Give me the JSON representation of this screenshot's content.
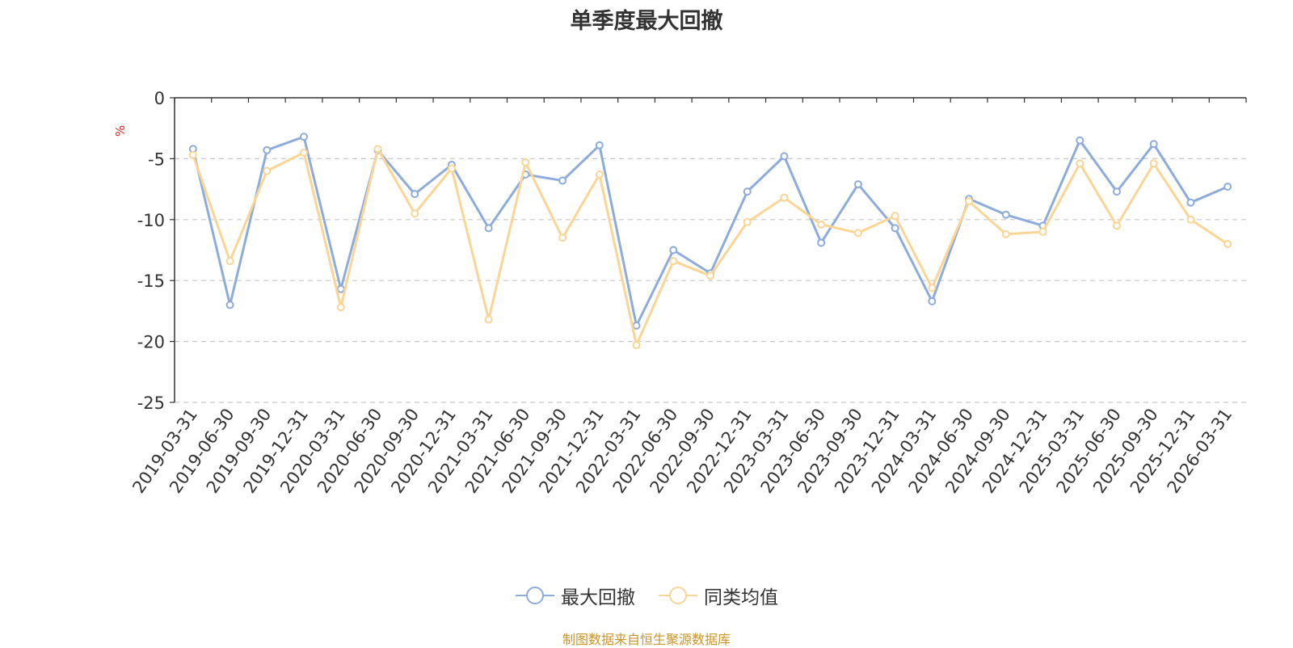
{
  "title": "单季度最大回撤",
  "footer": "制图数据来自恒生聚源数据库",
  "chart_data": {
    "type": "line",
    "ylabel": "%",
    "ylim": [
      -25,
      0
    ],
    "yticks": [
      0,
      -5,
      -10,
      -15,
      -20,
      -25
    ],
    "grid": true,
    "legend_position": "bottom-center",
    "categories": [
      "2019-03-31",
      "2019-06-30",
      "2019-09-30",
      "2019-12-31",
      "2020-03-31",
      "2020-06-30",
      "2020-09-30",
      "2020-12-31",
      "2021-03-31",
      "2021-06-30",
      "2021-09-30",
      "2021-12-31",
      "2022-03-31",
      "2022-06-30",
      "2022-09-30",
      "2022-12-31",
      "2023-03-31",
      "2023-06-30",
      "2023-09-30",
      "2023-12-31",
      "2024-03-31",
      "2024-06-30",
      "2024-09-30",
      "2024-12-31",
      "2025-03-31",
      "2025-06-30",
      "2025-09-30",
      "2025-12-31",
      "2026-03-31"
    ],
    "series": [
      {
        "name": "最大回撤",
        "color": "#8eacdb",
        "values": [
          -4.2,
          -17.0,
          -4.3,
          -3.2,
          -15.7,
          -4.3,
          -7.9,
          -5.5,
          -10.7,
          -6.3,
          -6.8,
          -3.9,
          -18.7,
          -12.5,
          -14.4,
          -7.7,
          -4.8,
          -11.9,
          -7.1,
          -10.7,
          -16.7,
          -8.3,
          -9.6,
          -10.5,
          -3.5,
          -7.7,
          -3.8,
          -8.6,
          -7.3
        ]
      },
      {
        "name": "同类均值",
        "color": "#fad595",
        "values": [
          -4.7,
          -13.4,
          -6.0,
          -4.5,
          -17.2,
          -4.2,
          -9.5,
          -5.8,
          -18.2,
          -5.3,
          -11.5,
          -6.3,
          -20.3,
          -13.4,
          -14.6,
          -10.2,
          -8.2,
          -10.4,
          -11.1,
          -9.7,
          -15.6,
          -8.5,
          -11.2,
          -11.0,
          -5.4,
          -10.5,
          -5.4,
          -10.0,
          -12.0
        ]
      }
    ]
  }
}
